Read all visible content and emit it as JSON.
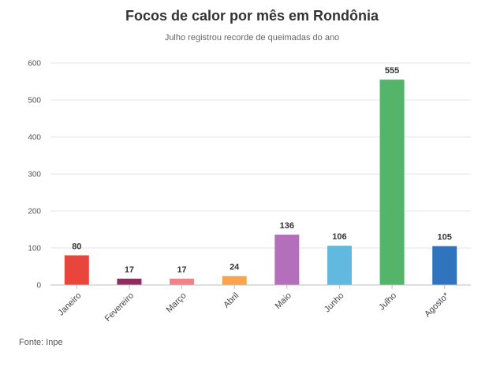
{
  "chart_data": {
    "type": "bar",
    "title": "Focos de calor por mês em Rondônia",
    "subtitle": "Julho registrou recorde de queimadas do ano",
    "source": "Fonte: Inpe",
    "categories": [
      "Janeiro",
      "Fevereiro",
      "Março",
      "Abril",
      "Maio",
      "Junho",
      "Julho",
      "Agosto*"
    ],
    "values": [
      80,
      17,
      17,
      24,
      136,
      106,
      555,
      105
    ],
    "colors": [
      "#e8453c",
      "#8e2e5d",
      "#f1818a",
      "#f9a44c",
      "#b36fba",
      "#62b9e0",
      "#53b46a",
      "#2f74bd"
    ],
    "yticks": [
      0,
      100,
      200,
      300,
      400,
      500,
      600
    ],
    "ylim": [
      0,
      600
    ],
    "grid": true,
    "legend": false
  }
}
